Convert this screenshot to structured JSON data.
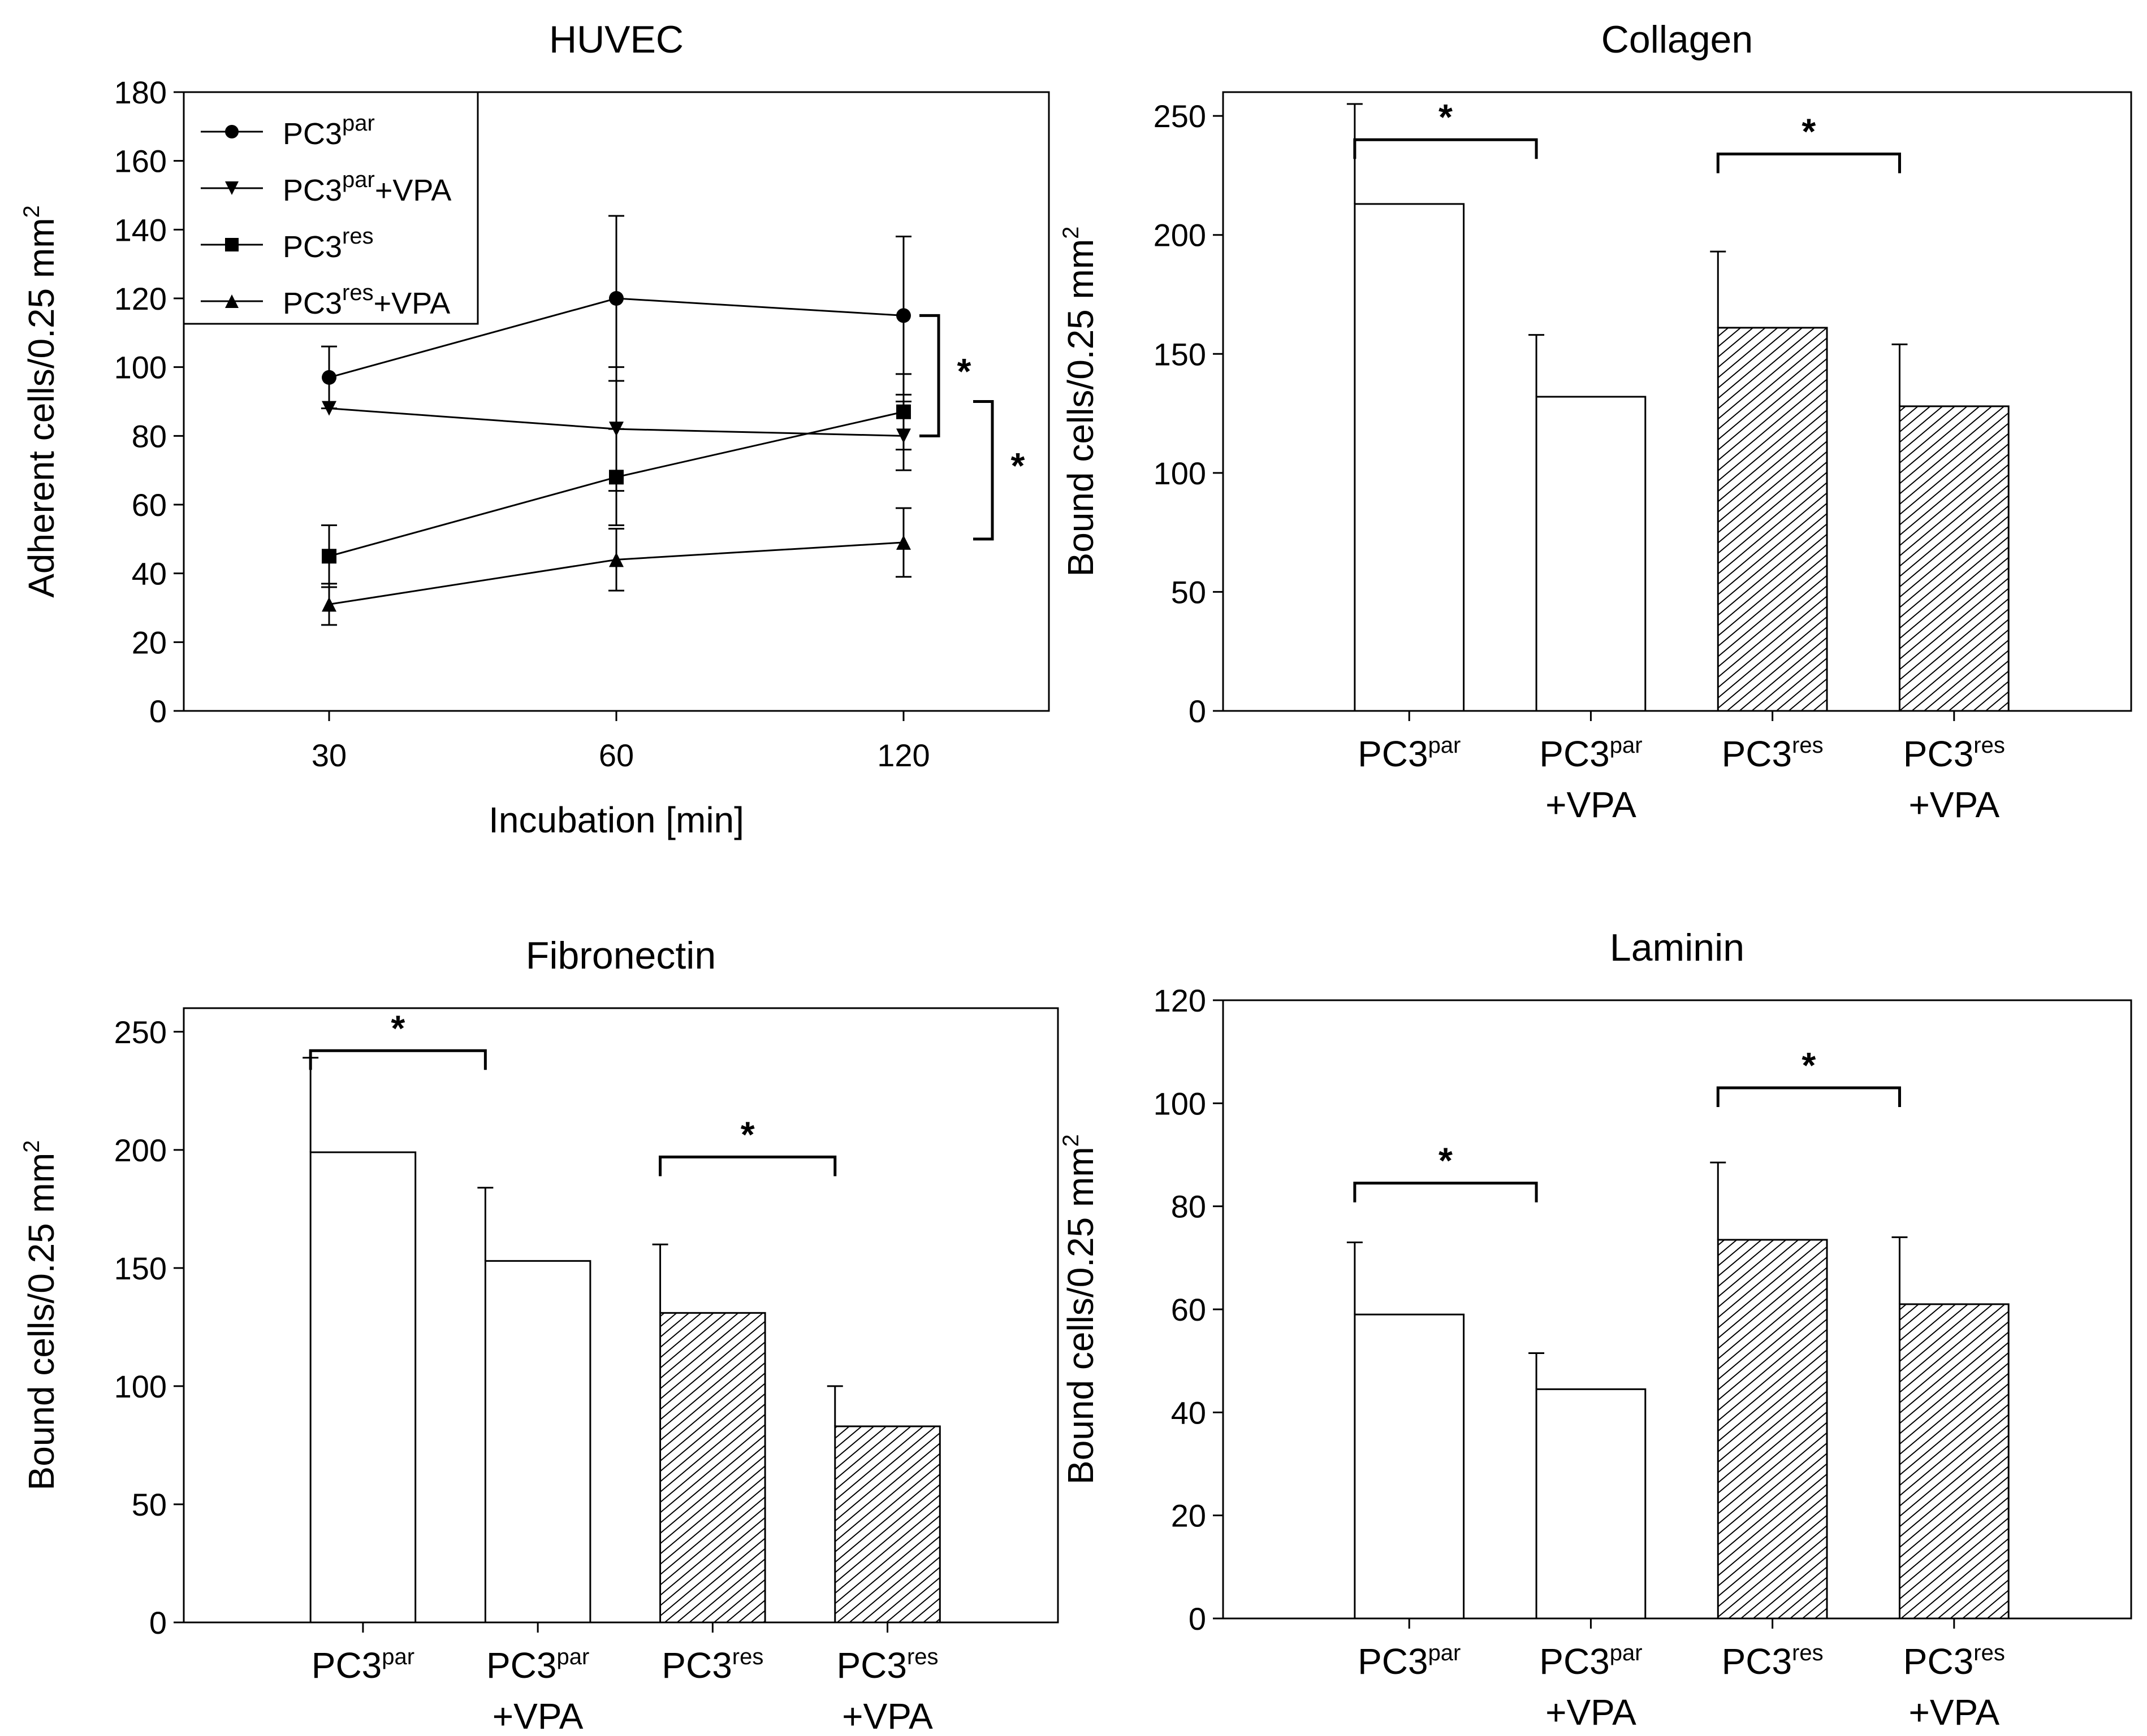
{
  "colors": {
    "ink": "#000000",
    "bar_fill": "#ffffff",
    "hatch": "#000000"
  },
  "chart_data": [
    {
      "type": "line",
      "title": "HUVEC",
      "xlabel": "Incubation [min]",
      "ylabel": "Adherent cells/0.25 mm",
      "ylabel_sup": "2",
      "x": [
        "30",
        "60",
        "120"
      ],
      "ylim": [
        0,
        180
      ],
      "yticks": [
        0,
        20,
        40,
        60,
        80,
        100,
        120,
        140,
        160,
        180
      ],
      "grid": false,
      "legend": "top-left",
      "series": [
        {
          "name": "PC3",
          "sup": "par",
          "suffix": "",
          "marker": "circle",
          "values": [
            97,
            120,
            115
          ],
          "errors": [
            9,
            24,
            23
          ]
        },
        {
          "name": "PC3",
          "sup": "par",
          "suffix": "+VPA",
          "marker": "triangle-down",
          "values": [
            88,
            82,
            80
          ],
          "errors": [
            0,
            18,
            10
          ]
        },
        {
          "name": "PC3",
          "sup": "res",
          "suffix": "",
          "marker": "square",
          "values": [
            45,
            68,
            87
          ],
          "errors": [
            9,
            14,
            11
          ]
        },
        {
          "name": "PC3",
          "sup": "res",
          "suffix": "+VPA",
          "marker": "triangle-up",
          "values": [
            31,
            44,
            49
          ],
          "errors": [
            6,
            9,
            10
          ]
        }
      ],
      "annotations": [
        {
          "text": "*",
          "from": 115,
          "to": 80
        },
        {
          "text": "*",
          "from": 90,
          "to": 50
        }
      ]
    },
    {
      "type": "bar",
      "title": "Collagen",
      "xlabel": "",
      "ylabel": "Bound cells/0.25 mm",
      "ylabel_sup": "2",
      "categories": [
        {
          "base": "PC3",
          "sup": "par",
          "line2": "",
          "hatched": false
        },
        {
          "base": "PC3",
          "sup": "par",
          "line2": "+VPA",
          "hatched": false
        },
        {
          "base": "PC3",
          "sup": "res",
          "line2": "",
          "hatched": true
        },
        {
          "base": "PC3",
          "sup": "res",
          "line2": "+VPA",
          "hatched": true
        }
      ],
      "values": [
        213,
        132,
        161,
        128
      ],
      "errors": [
        42,
        26,
        32,
        26
      ],
      "ylim": [
        0,
        260
      ],
      "yticks": [
        0,
        50,
        100,
        150,
        200,
        250
      ],
      "grid": false,
      "significance": [
        {
          "pair": [
            0,
            1
          ],
          "level": 240,
          "text": "*"
        },
        {
          "pair": [
            2,
            3
          ],
          "level": 234,
          "text": "*"
        }
      ]
    },
    {
      "type": "bar",
      "title": "Fibronectin",
      "xlabel": "",
      "ylabel": "Bound cells/0.25 mm",
      "ylabel_sup": "2",
      "categories": [
        {
          "base": "PC3",
          "sup": "par",
          "line2": "",
          "hatched": false
        },
        {
          "base": "PC3",
          "sup": "par",
          "line2": "+VPA",
          "hatched": false
        },
        {
          "base": "PC3",
          "sup": "res",
          "line2": "",
          "hatched": true
        },
        {
          "base": "PC3",
          "sup": "res",
          "line2": "+VPA",
          "hatched": true
        }
      ],
      "values": [
        199,
        153,
        131,
        83
      ],
      "errors": [
        40,
        31,
        29,
        17
      ],
      "ylim": [
        0,
        260
      ],
      "yticks": [
        0,
        50,
        100,
        150,
        200,
        250
      ],
      "grid": false,
      "significance": [
        {
          "pair": [
            0,
            1
          ],
          "level": 242,
          "text": "*"
        },
        {
          "pair": [
            2,
            3
          ],
          "level": 197,
          "text": "*"
        }
      ]
    },
    {
      "type": "bar",
      "title": "Laminin",
      "xlabel": "",
      "ylabel": "Bound cells/0.25 mm",
      "ylabel_sup": "2",
      "categories": [
        {
          "base": "PC3",
          "sup": "par",
          "line2": "",
          "hatched": false
        },
        {
          "base": "PC3",
          "sup": "par",
          "line2": "+VPA",
          "hatched": false
        },
        {
          "base": "PC3",
          "sup": "res",
          "line2": "",
          "hatched": true
        },
        {
          "base": "PC3",
          "sup": "res",
          "line2": "+VPA",
          "hatched": true
        }
      ],
      "values": [
        59,
        44.5,
        73.5,
        61
      ],
      "errors": [
        14,
        7,
        15,
        13
      ],
      "ylim": [
        0,
        120
      ],
      "yticks": [
        0,
        20,
        40,
        60,
        80,
        100,
        120
      ],
      "grid": false,
      "significance": [
        {
          "pair": [
            0,
            1
          ],
          "level": 84.5,
          "text": "*"
        },
        {
          "pair": [
            2,
            3
          ],
          "level": 103,
          "text": "*"
        }
      ]
    }
  ]
}
